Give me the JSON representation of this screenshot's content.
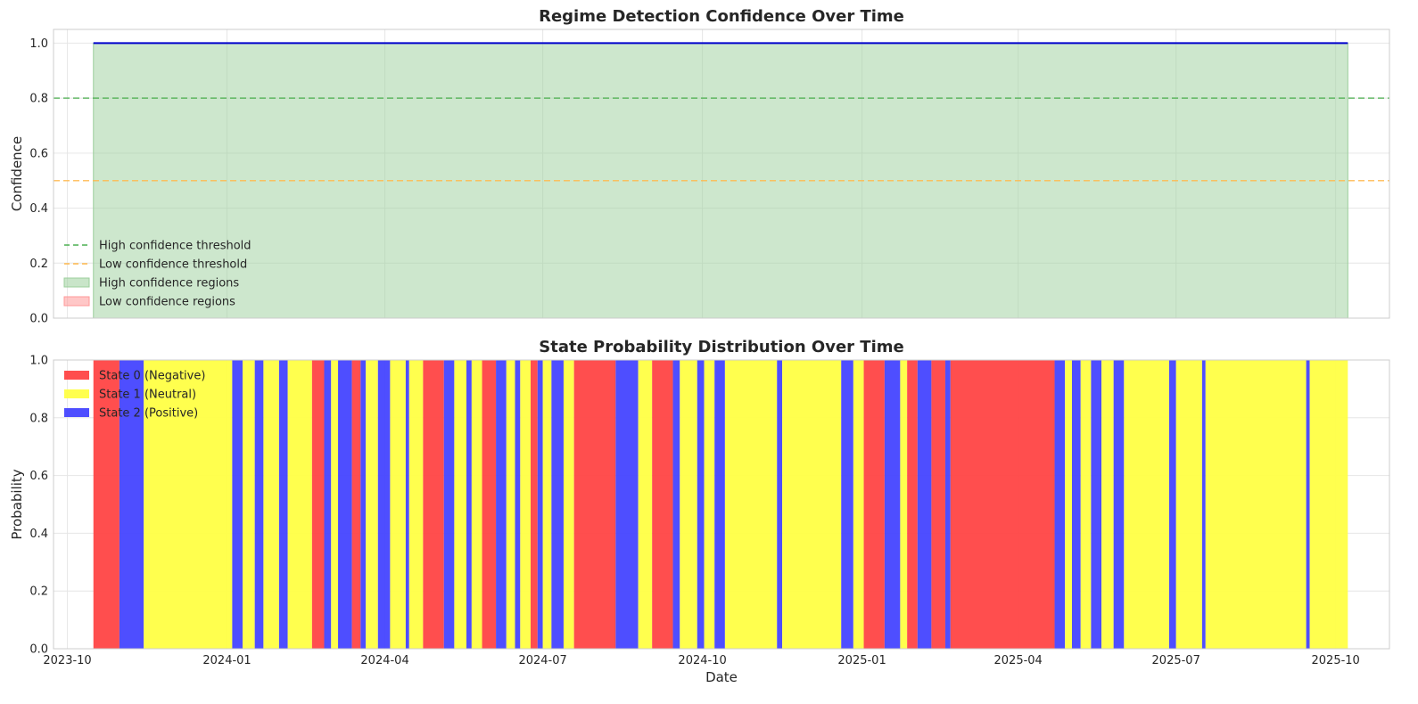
{
  "colors": {
    "confidence_line": "#0000cc",
    "high_fill": "#9ccf9c",
    "low_fill": "#ff9999",
    "high_threshold": "#4caf50",
    "low_threshold": "#ffb84d",
    "state0": "#ff4444",
    "state1": "#ffff44",
    "state2": "#4444ff",
    "grid": "#e6e6e6",
    "spine": "#cccccc"
  },
  "chart_data": [
    {
      "type": "line",
      "title": "Regime Detection Confidence Over Time",
      "xlabel": "",
      "ylabel": "Confidence",
      "xlim": [
        "2023-09-23",
        "2025-11-01"
      ],
      "ylim": [
        0,
        1.05
      ],
      "yticks": [
        0.0,
        0.2,
        0.4,
        0.6,
        0.8,
        1.0
      ],
      "ytick_labels": [
        "0.0",
        "0.2",
        "0.4",
        "0.6",
        "0.8",
        "1.0"
      ],
      "grid": true,
      "legend_position": "lower-left",
      "series": [
        {
          "name": "",
          "x": [
            "2023-10-16",
            "2025-10-08"
          ],
          "y": [
            1.0,
            1.0
          ]
        }
      ],
      "thresholds": [
        {
          "name": "High confidence threshold",
          "value": 0.8,
          "style": "dashed"
        },
        {
          "name": "Low confidence threshold",
          "value": 0.5,
          "style": "dashed"
        }
      ],
      "regions": [
        {
          "name": "High confidence regions",
          "start": "2023-10-16",
          "end": "2025-10-08",
          "from": 0,
          "to": 1.0
        },
        {
          "name": "Low confidence regions",
          "start": null,
          "end": null
        }
      ],
      "legend": [
        {
          "label": "High confidence threshold",
          "kind": "dash-green"
        },
        {
          "label": "Low confidence threshold",
          "kind": "dash-orange"
        },
        {
          "label": "High confidence regions",
          "kind": "patch-green"
        },
        {
          "label": "Low confidence regions",
          "kind": "patch-red"
        }
      ]
    },
    {
      "type": "area",
      "title": "State Probability Distribution Over Time",
      "xlabel": "Date",
      "ylabel": "Probability",
      "xlim": [
        "2023-09-23",
        "2025-11-01"
      ],
      "ylim": [
        0,
        1.0
      ],
      "yticks": [
        0.0,
        0.2,
        0.4,
        0.6,
        0.8,
        1.0
      ],
      "ytick_labels": [
        "0.0",
        "0.2",
        "0.4",
        "0.6",
        "0.8",
        "1.0"
      ],
      "xticks": [
        "2023-10-01",
        "2024-01-01",
        "2024-04-01",
        "2024-07-01",
        "2024-10-01",
        "2025-01-01",
        "2025-04-01",
        "2025-07-01",
        "2025-10-01"
      ],
      "xtick_labels": [
        "2023-10",
        "2024-01",
        "2024-04",
        "2024-07",
        "2024-10",
        "2025-01",
        "2025-04",
        "2025-07",
        "2025-10"
      ],
      "grid": true,
      "legend_position": "upper-left",
      "legend": [
        {
          "label": "State 0 (Negative)",
          "state": 0
        },
        {
          "label": "State 1 (Neutral)",
          "state": 1
        },
        {
          "label": "State 2 (Positive)",
          "state": 2
        }
      ],
      "dominant_state_segments": [
        {
          "start": "2023-10-16",
          "end": "2023-10-31",
          "state": 0
        },
        {
          "start": "2023-10-31",
          "end": "2023-11-14",
          "state": 2
        },
        {
          "start": "2023-11-14",
          "end": "2024-01-04",
          "state": 1
        },
        {
          "start": "2024-01-04",
          "end": "2024-01-10",
          "state": 2
        },
        {
          "start": "2024-01-10",
          "end": "2024-01-17",
          "state": 1
        },
        {
          "start": "2024-01-17",
          "end": "2024-01-22",
          "state": 2
        },
        {
          "start": "2024-01-22",
          "end": "2024-01-31",
          "state": 1
        },
        {
          "start": "2024-01-31",
          "end": "2024-02-05",
          "state": 2
        },
        {
          "start": "2024-02-05",
          "end": "2024-02-19",
          "state": 1
        },
        {
          "start": "2024-02-19",
          "end": "2024-02-26",
          "state": 0
        },
        {
          "start": "2024-02-26",
          "end": "2024-03-01",
          "state": 2
        },
        {
          "start": "2024-03-01",
          "end": "2024-03-05",
          "state": 1
        },
        {
          "start": "2024-03-05",
          "end": "2024-03-13",
          "state": 2
        },
        {
          "start": "2024-03-13",
          "end": "2024-03-18",
          "state": 0
        },
        {
          "start": "2024-03-18",
          "end": "2024-03-21",
          "state": 2
        },
        {
          "start": "2024-03-21",
          "end": "2024-03-28",
          "state": 1
        },
        {
          "start": "2024-03-28",
          "end": "2024-04-04",
          "state": 2
        },
        {
          "start": "2024-04-04",
          "end": "2024-04-13",
          "state": 1
        },
        {
          "start": "2024-04-13",
          "end": "2024-04-15",
          "state": 2
        },
        {
          "start": "2024-04-15",
          "end": "2024-04-23",
          "state": 1
        },
        {
          "start": "2024-04-23",
          "end": "2024-05-05",
          "state": 0
        },
        {
          "start": "2024-05-05",
          "end": "2024-05-11",
          "state": 2
        },
        {
          "start": "2024-05-11",
          "end": "2024-05-18",
          "state": 1
        },
        {
          "start": "2024-05-18",
          "end": "2024-05-21",
          "state": 2
        },
        {
          "start": "2024-05-21",
          "end": "2024-05-27",
          "state": 1
        },
        {
          "start": "2024-05-27",
          "end": "2024-06-04",
          "state": 0
        },
        {
          "start": "2024-06-04",
          "end": "2024-06-10",
          "state": 2
        },
        {
          "start": "2024-06-10",
          "end": "2024-06-15",
          "state": 1
        },
        {
          "start": "2024-06-15",
          "end": "2024-06-18",
          "state": 2
        },
        {
          "start": "2024-06-18",
          "end": "2024-06-24",
          "state": 1
        },
        {
          "start": "2024-06-24",
          "end": "2024-06-28",
          "state": 0
        },
        {
          "start": "2024-06-28",
          "end": "2024-07-01",
          "state": 2
        },
        {
          "start": "2024-07-01",
          "end": "2024-07-06",
          "state": 1
        },
        {
          "start": "2024-07-06",
          "end": "2024-07-13",
          "state": 2
        },
        {
          "start": "2024-07-13",
          "end": "2024-07-19",
          "state": 1
        },
        {
          "start": "2024-07-19",
          "end": "2024-08-12",
          "state": 0
        },
        {
          "start": "2024-08-12",
          "end": "2024-08-25",
          "state": 2
        },
        {
          "start": "2024-08-25",
          "end": "2024-09-02",
          "state": 1
        },
        {
          "start": "2024-09-02",
          "end": "2024-09-14",
          "state": 0
        },
        {
          "start": "2024-09-14",
          "end": "2024-09-18",
          "state": 2
        },
        {
          "start": "2024-09-18",
          "end": "2024-09-28",
          "state": 1
        },
        {
          "start": "2024-09-28",
          "end": "2024-10-02",
          "state": 2
        },
        {
          "start": "2024-10-02",
          "end": "2024-10-08",
          "state": 1
        },
        {
          "start": "2024-10-08",
          "end": "2024-10-14",
          "state": 2
        },
        {
          "start": "2024-10-14",
          "end": "2024-11-13",
          "state": 1
        },
        {
          "start": "2024-11-13",
          "end": "2024-11-16",
          "state": 2
        },
        {
          "start": "2024-11-16",
          "end": "2024-12-20",
          "state": 1
        },
        {
          "start": "2024-12-20",
          "end": "2024-12-27",
          "state": 2
        },
        {
          "start": "2024-12-27",
          "end": "2025-01-02",
          "state": 1
        },
        {
          "start": "2025-01-02",
          "end": "2025-01-14",
          "state": 0
        },
        {
          "start": "2025-01-14",
          "end": "2025-01-23",
          "state": 2
        },
        {
          "start": "2025-01-23",
          "end": "2025-01-27",
          "state": 1
        },
        {
          "start": "2025-01-27",
          "end": "2025-02-02",
          "state": 0
        },
        {
          "start": "2025-02-02",
          "end": "2025-02-10",
          "state": 2
        },
        {
          "start": "2025-02-10",
          "end": "2025-02-18",
          "state": 0
        },
        {
          "start": "2025-02-18",
          "end": "2025-02-21",
          "state": 2
        },
        {
          "start": "2025-02-21",
          "end": "2025-04-22",
          "state": 0
        },
        {
          "start": "2025-04-22",
          "end": "2025-04-28",
          "state": 2
        },
        {
          "start": "2025-04-28",
          "end": "2025-05-02",
          "state": 1
        },
        {
          "start": "2025-05-02",
          "end": "2025-05-07",
          "state": 2
        },
        {
          "start": "2025-05-07",
          "end": "2025-05-13",
          "state": 1
        },
        {
          "start": "2025-05-13",
          "end": "2025-05-19",
          "state": 2
        },
        {
          "start": "2025-05-19",
          "end": "2025-05-26",
          "state": 1
        },
        {
          "start": "2025-05-26",
          "end": "2025-06-01",
          "state": 2
        },
        {
          "start": "2025-06-01",
          "end": "2025-06-27",
          "state": 1
        },
        {
          "start": "2025-06-27",
          "end": "2025-07-01",
          "state": 2
        },
        {
          "start": "2025-07-01",
          "end": "2025-07-16",
          "state": 1
        },
        {
          "start": "2025-07-16",
          "end": "2025-07-18",
          "state": 2
        },
        {
          "start": "2025-07-18",
          "end": "2025-09-14",
          "state": 1
        },
        {
          "start": "2025-09-14",
          "end": "2025-09-16",
          "state": 2
        },
        {
          "start": "2025-09-16",
          "end": "2025-10-08",
          "state": 1
        }
      ]
    }
  ]
}
